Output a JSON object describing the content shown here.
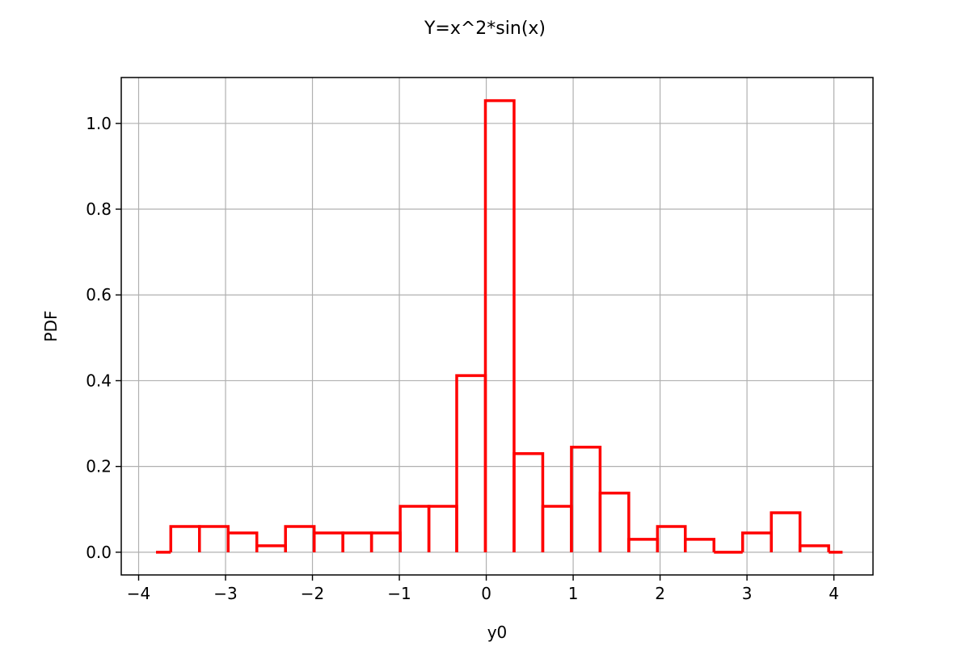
{
  "chart_data": {
    "type": "histogram",
    "title": "Y=x^2*sin(x)",
    "xlabel": "y0",
    "ylabel": "PDF",
    "xlim": [
      -4.2,
      4.45
    ],
    "ylim": [
      -0.053,
      1.107
    ],
    "xticks": [
      -4,
      -3,
      -2,
      -1,
      0,
      1,
      2,
      3,
      4
    ],
    "xtick_labels": [
      "−4",
      "−3",
      "−2",
      "−1",
      "0",
      "1",
      "2",
      "3",
      "4"
    ],
    "yticks": [
      0.0,
      0.2,
      0.4,
      0.6,
      0.8,
      1.0
    ],
    "ytick_labels": [
      "0.0",
      "0.2",
      "0.4",
      "0.6",
      "0.8",
      "1.0"
    ],
    "grid": true,
    "color": "#ff0000",
    "bin_edges": [
      -3.8,
      -3.63,
      -3.3,
      -2.97,
      -2.64,
      -2.31,
      -1.98,
      -1.65,
      -1.32,
      -0.99,
      -0.66,
      -0.34,
      -0.01,
      0.32,
      0.65,
      0.98,
      1.31,
      1.64,
      1.97,
      2.29,
      2.62,
      2.95,
      3.28,
      3.61,
      3.94,
      4.1
    ],
    "values": [
      0.0,
      0.06,
      0.06,
      0.045,
      0.015,
      0.06,
      0.045,
      0.045,
      0.045,
      0.107,
      0.107,
      0.412,
      1.053,
      0.23,
      0.107,
      0.245,
      0.138,
      0.03,
      0.06,
      0.03,
      0.0,
      0.045,
      0.092,
      0.015,
      0.0
    ]
  }
}
